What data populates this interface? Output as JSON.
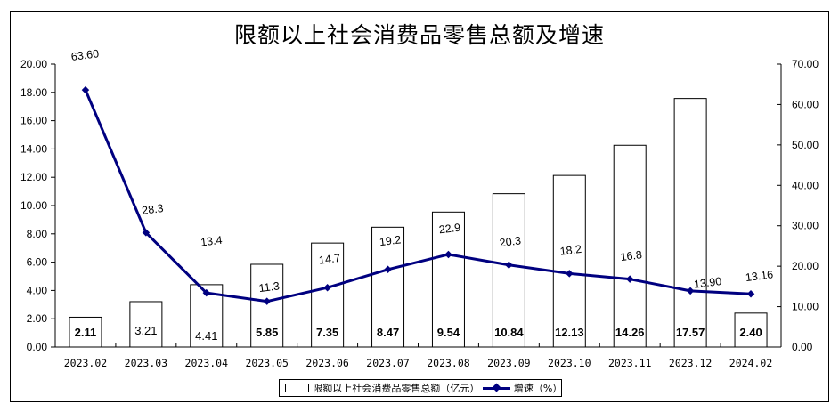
{
  "chart_data": {
    "type": "bar+line",
    "title": "限额以上社会消费品零售总额及增速",
    "categories": [
      "2023.02",
      "2023.03",
      "2023.04",
      "2023.05",
      "2023.06",
      "2023.07",
      "2023.08",
      "2023.09",
      "2023.10",
      "2023.11",
      "2023.12",
      "2024.02"
    ],
    "series": [
      {
        "name": "限额以上社会消费品零售总额（亿元）",
        "type": "bar",
        "axis": "left",
        "values": [
          2.11,
          3.21,
          4.41,
          5.85,
          7.35,
          8.47,
          9.54,
          10.84,
          12.13,
          14.26,
          17.57,
          2.4
        ],
        "labels": [
          "2.11",
          "3.21",
          "4.41",
          "5.85",
          "7.35",
          "8.47",
          "9.54",
          "10.84",
          "12.13",
          "14.26",
          "17.57",
          "2.40"
        ],
        "color": "#ffffff",
        "border": "#000000"
      },
      {
        "name": "增速（%）",
        "type": "line",
        "axis": "right",
        "values": [
          63.6,
          28.3,
          13.4,
          11.3,
          14.7,
          19.2,
          22.9,
          20.3,
          18.2,
          16.8,
          13.9,
          13.16
        ],
        "labels": [
          "63.60",
          "28.3",
          "13.4",
          "11.3",
          "14.7",
          "19.2",
          "22.9",
          "20.3",
          "18.2",
          "16.8",
          "13.90",
          "13.16"
        ],
        "color": "#000080"
      }
    ],
    "ylim_left": [
      0,
      20
    ],
    "yticks_left": [
      "0.00",
      "2.00",
      "4.00",
      "6.00",
      "8.00",
      "10.00",
      "12.00",
      "14.00",
      "16.00",
      "18.00",
      "20.00"
    ],
    "ylim_right": [
      0,
      70
    ],
    "yticks_right": [
      "0.00",
      "10.00",
      "20.00",
      "30.00",
      "40.00",
      "50.00",
      "60.00",
      "70.00"
    ],
    "xlabel": "",
    "ylabel": "",
    "grid": false,
    "legend_position": "bottom"
  },
  "legend": {
    "bar_label": "限额以上社会消费品零售总额（亿元）",
    "line_label": "增速（%）"
  }
}
